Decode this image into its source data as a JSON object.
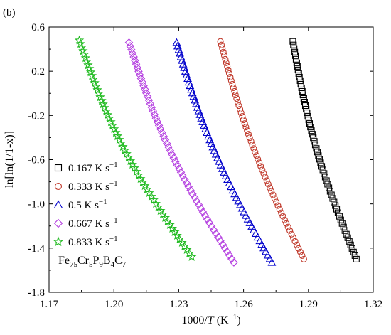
{
  "panel_label": "(b)",
  "chart_data": {
    "type": "scatter",
    "xlabel_prefix": "1000/",
    "xlabel_var": "T",
    "xlabel_suffix": " (K",
    "xlabel_sup": "−1",
    "xlabel_close": ")",
    "ylabel": "ln[ln(1/1-x)]",
    "xlim": [
      1.17,
      1.32
    ],
    "ylim": [
      -1.8,
      0.6
    ],
    "xticks": [
      1.17,
      1.2,
      1.23,
      1.26,
      1.29,
      1.32
    ],
    "xtick_labels": [
      "1.17",
      "1.20",
      "1.23",
      "1.26",
      "1.29",
      "1.32"
    ],
    "yticks": [
      -1.8,
      -1.4,
      -1.0,
      -0.6,
      -0.2,
      0.2,
      0.6
    ],
    "ytick_labels": [
      "-1.8",
      "-1.4",
      "-1.0",
      "-0.6",
      "-0.2",
      "0.2",
      "0.6"
    ],
    "grid": false,
    "legend_position": "lower-left",
    "composition": {
      "parts": [
        {
          "t": "Fe",
          "sub": false
        },
        {
          "t": "75",
          "sub": true
        },
        {
          "t": "Cr",
          "sub": false
        },
        {
          "t": "5",
          "sub": true
        },
        {
          "t": "P",
          "sub": false
        },
        {
          "t": "9",
          "sub": true
        },
        {
          "t": "B",
          "sub": false
        },
        {
          "t": "4",
          "sub": true
        },
        {
          "t": "C",
          "sub": false
        },
        {
          "t": "7",
          "sub": true
        }
      ]
    },
    "series": [
      {
        "name": "0.167 K s",
        "unit_sup": "−1",
        "marker": "square",
        "color": "#000000",
        "x_top": 1.2828,
        "x_bottom": 1.3122,
        "curve": 0.006,
        "y_top": 0.47,
        "y_bottom": -1.5,
        "n_points": 62
      },
      {
        "name": "0.333 K s",
        "unit_sup": "−1",
        "marker": "circle",
        "color": "#c0392b",
        "x_top": 1.2493,
        "x_bottom": 1.2879,
        "curve": 0.006,
        "y_top": 0.47,
        "y_bottom": -1.5,
        "n_points": 62
      },
      {
        "name": "0.5 K s",
        "unit_sup": "−1",
        "marker": "triangle",
        "color": "#0000cc",
        "x_top": 1.229,
        "x_bottom": 1.2731,
        "curve": 0.007,
        "y_top": 0.46,
        "y_bottom": -1.53,
        "n_points": 62
      },
      {
        "name": "0.667 K s",
        "unit_sup": "−1",
        "marker": "diamond",
        "color": "#b43ee0",
        "x_top": 1.207,
        "x_bottom": 1.2555,
        "curve": 0.008,
        "y_top": 0.46,
        "y_bottom": -1.53,
        "n_points": 62
      },
      {
        "name": "0.833 K s",
        "unit_sup": "−1",
        "marker": "star",
        "color": "#22bb22",
        "x_top": 1.184,
        "x_bottom": 1.236,
        "curve": 0.009,
        "y_top": 0.48,
        "y_bottom": -1.48,
        "n_points": 62
      }
    ]
  }
}
